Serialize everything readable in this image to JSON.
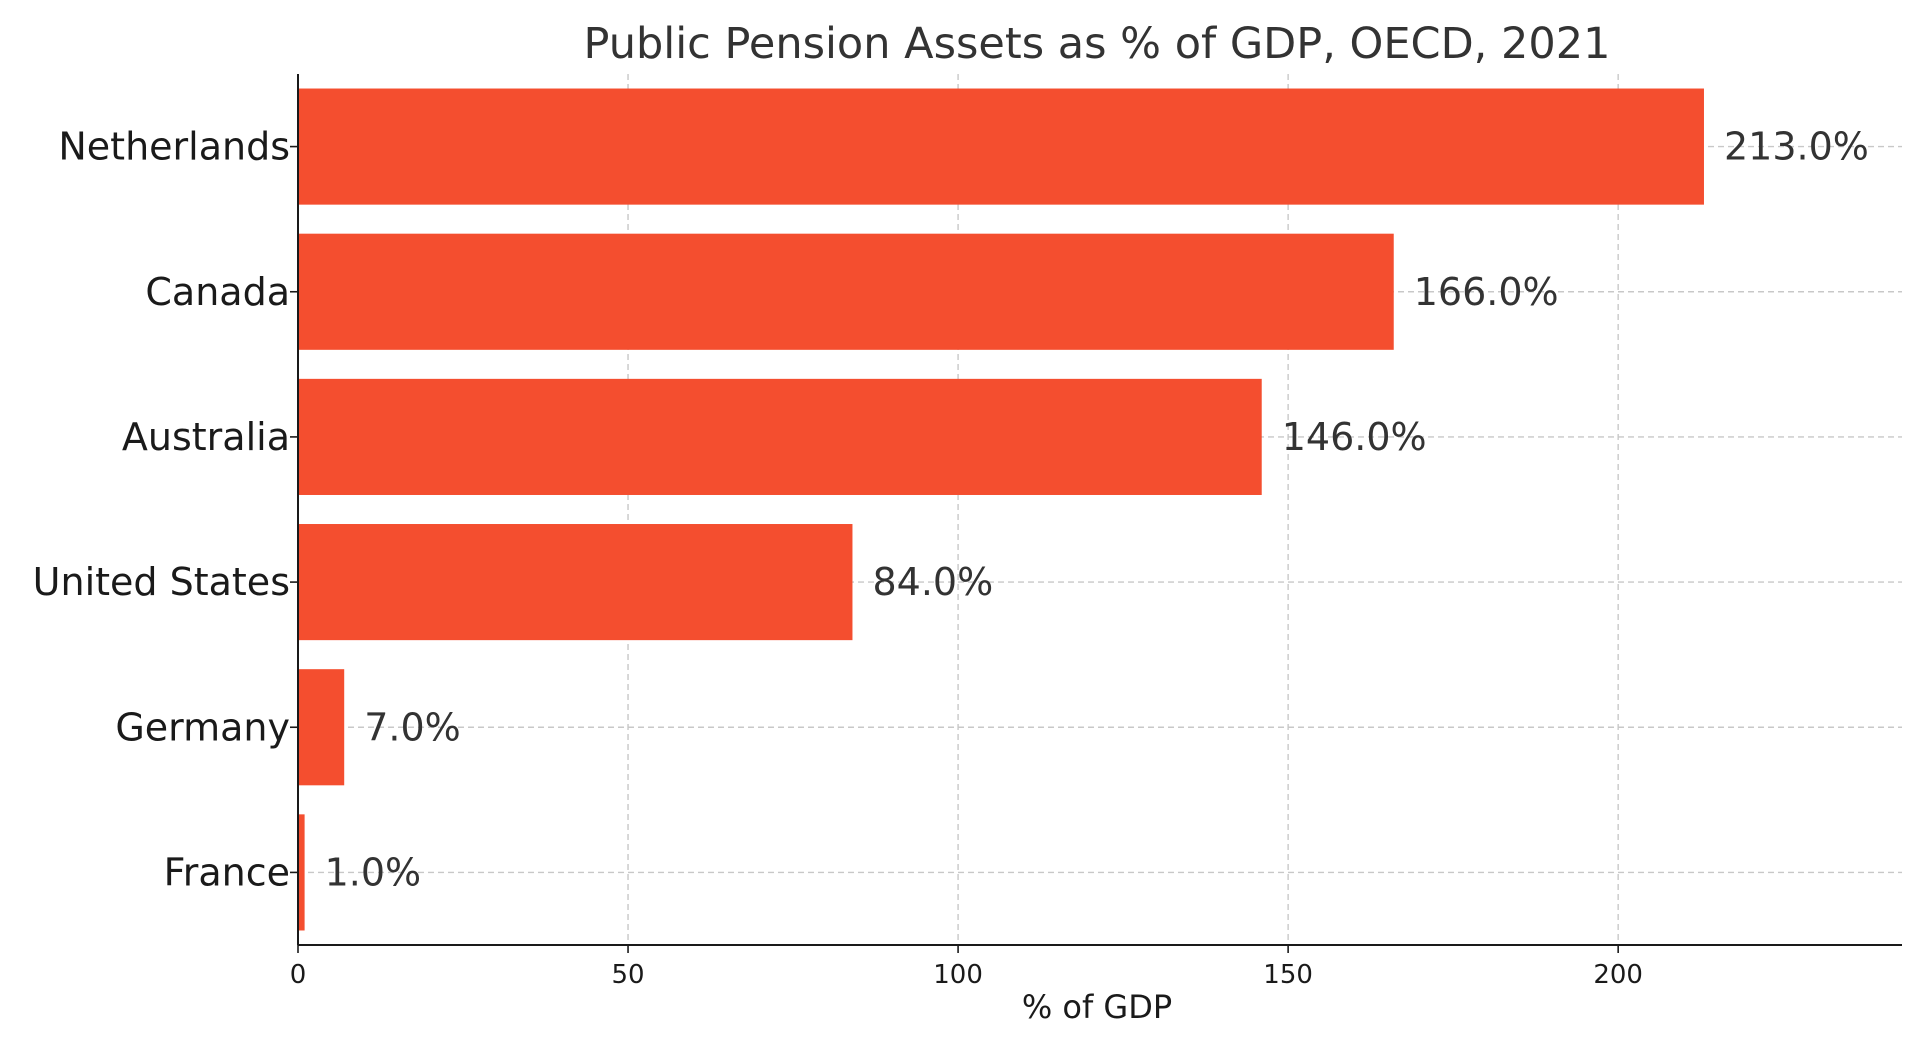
{
  "chart_data": {
    "type": "bar",
    "orientation": "horizontal",
    "title": "Public Pension Assets as % of GDP, OECD, 2021",
    "xlabel": "% of GDP",
    "ylabel": "",
    "categories": [
      "Netherlands",
      "Canada",
      "Australia",
      "United States",
      "Germany",
      "France"
    ],
    "values": [
      213.0,
      166.0,
      146.0,
      84.0,
      7.0,
      1.0
    ],
    "data_labels": [
      "213.0%",
      "166.0%",
      "146.0%",
      "84.0%",
      "7.0%",
      "1.0%"
    ],
    "xlim": [
      0,
      243
    ],
    "x_ticks": [
      0,
      50,
      100,
      150,
      200
    ],
    "x_tick_labels": [
      "0",
      "50",
      "100",
      "150",
      "200"
    ],
    "grid": true,
    "bar_color": "#f44e2f"
  }
}
